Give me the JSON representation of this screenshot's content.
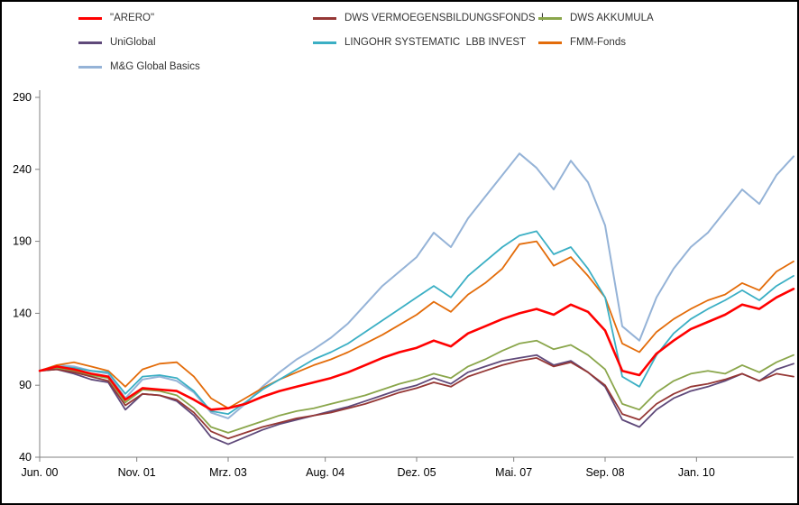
{
  "window": {
    "background": "#FFFFFF",
    "border_color": "#000000"
  },
  "chart_data": {
    "type": "line",
    "title": "",
    "xlabel": "",
    "ylabel": "",
    "grid": false,
    "legend_position": "top-left",
    "x_unit": "months since Jun 2000",
    "xlim": [
      0,
      132
    ],
    "ylim": [
      40,
      295
    ],
    "y_ticks": [
      40,
      90,
      140,
      190,
      240,
      290
    ],
    "x_ticks": [
      {
        "month": 0,
        "label": "Jun. 00"
      },
      {
        "month": 17,
        "label": "Nov. 01"
      },
      {
        "month": 33,
        "label": "Mrz. 03"
      },
      {
        "month": 50,
        "label": "Aug. 04"
      },
      {
        "month": 66,
        "label": "Dez. 05"
      },
      {
        "month": 83,
        "label": "Mai. 07"
      },
      {
        "month": 99,
        "label": "Sep. 08"
      },
      {
        "month": 115,
        "label": "Jan. 10"
      }
    ],
    "x": [
      0,
      3,
      6,
      9,
      12,
      15,
      18,
      21,
      24,
      27,
      30,
      33,
      36,
      39,
      42,
      45,
      48,
      51,
      54,
      57,
      60,
      63,
      66,
      69,
      72,
      75,
      78,
      81,
      84,
      87,
      90,
      93,
      96,
      99,
      102,
      105,
      108,
      111,
      114,
      117,
      120,
      123,
      126,
      129,
      132
    ],
    "series": [
      {
        "name": "\"ARERO\"",
        "color": "#FF0000",
        "width": 2.6,
        "values": [
          100,
          103,
          101,
          98,
          96,
          80,
          88,
          87,
          86,
          80,
          73,
          74,
          77,
          82,
          86,
          89,
          92,
          95,
          99,
          104,
          109,
          113,
          116,
          121,
          117,
          126,
          131,
          136,
          140,
          143,
          139,
          146,
          141,
          128,
          100,
          97,
          112,
          121,
          129,
          134,
          139,
          146,
          143,
          151,
          157
        ]
      },
      {
        "name": "DWS VERMOEGENSBILDUNGSFONDS  I",
        "color": "#953735",
        "width": 1.8,
        "values": [
          100,
          101,
          99,
          96,
          93,
          76,
          84,
          83,
          80,
          71,
          58,
          53,
          57,
          61,
          64,
          67,
          69,
          71,
          74,
          77,
          81,
          85,
          88,
          92,
          89,
          96,
          100,
          104,
          107,
          109,
          103,
          106,
          99,
          90,
          70,
          66,
          77,
          84,
          89,
          91,
          94,
          98,
          93,
          98,
          96
        ]
      },
      {
        "name": "DWS AKKUMULA",
        "color": "#8AA64B",
        "width": 1.8,
        "values": [
          100,
          102,
          100,
          97,
          95,
          78,
          87,
          86,
          83,
          74,
          61,
          57,
          61,
          65,
          69,
          72,
          74,
          77,
          80,
          83,
          87,
          91,
          94,
          98,
          95,
          103,
          108,
          114,
          119,
          121,
          115,
          118,
          111,
          101,
          77,
          73,
          85,
          93,
          98,
          100,
          98,
          104,
          99,
          106,
          111
        ]
      },
      {
        "name": "UniGlobal",
        "color": "#5F497A",
        "width": 1.8,
        "values": [
          100,
          101,
          98,
          94,
          92,
          73,
          84,
          83,
          79,
          69,
          54,
          49,
          54,
          59,
          63,
          66,
          69,
          72,
          75,
          79,
          83,
          87,
          90,
          95,
          91,
          99,
          103,
          107,
          109,
          111,
          104,
          107,
          99,
          89,
          66,
          61,
          73,
          81,
          86,
          89,
          93,
          98,
          93,
          101,
          105
        ]
      },
      {
        "name": "LINGOHR SYSTEMATIC  LBB INVEST",
        "color": "#3BAFC4",
        "width": 1.8,
        "values": [
          100,
          103,
          102,
          100,
          99,
          84,
          96,
          97,
          95,
          86,
          72,
          70,
          78,
          87,
          94,
          101,
          108,
          113,
          119,
          127,
          135,
          143,
          151,
          159,
          151,
          166,
          176,
          186,
          194,
          197,
          181,
          186,
          171,
          151,
          96,
          89,
          111,
          126,
          136,
          143,
          149,
          156,
          149,
          159,
          166
        ]
      },
      {
        "name": "FMM-Fonds",
        "color": "#E36C0A",
        "width": 1.8,
        "values": [
          100,
          104,
          106,
          103,
          100,
          89,
          101,
          105,
          106,
          96,
          81,
          74,
          81,
          88,
          94,
          99,
          104,
          108,
          113,
          119,
          125,
          132,
          139,
          148,
          141,
          153,
          161,
          171,
          188,
          190,
          173,
          179,
          166,
          151,
          119,
          113,
          127,
          136,
          143,
          149,
          153,
          161,
          156,
          169,
          176
        ]
      },
      {
        "name": "M&G Global Basics",
        "color": "#95B3D7",
        "width": 2.0,
        "values": [
          100,
          104,
          103,
          100,
          98,
          81,
          94,
          96,
          93,
          85,
          71,
          67,
          77,
          89,
          99,
          108,
          115,
          123,
          133,
          146,
          159,
          169,
          179,
          196,
          186,
          206,
          221,
          236,
          251,
          241,
          226,
          246,
          231,
          201,
          131,
          121,
          151,
          171,
          186,
          196,
          211,
          226,
          216,
          236,
          249
        ]
      }
    ],
    "axis": {
      "line_color": "#808080",
      "tick_color": "#808080",
      "label_color": "#000000"
    }
  }
}
